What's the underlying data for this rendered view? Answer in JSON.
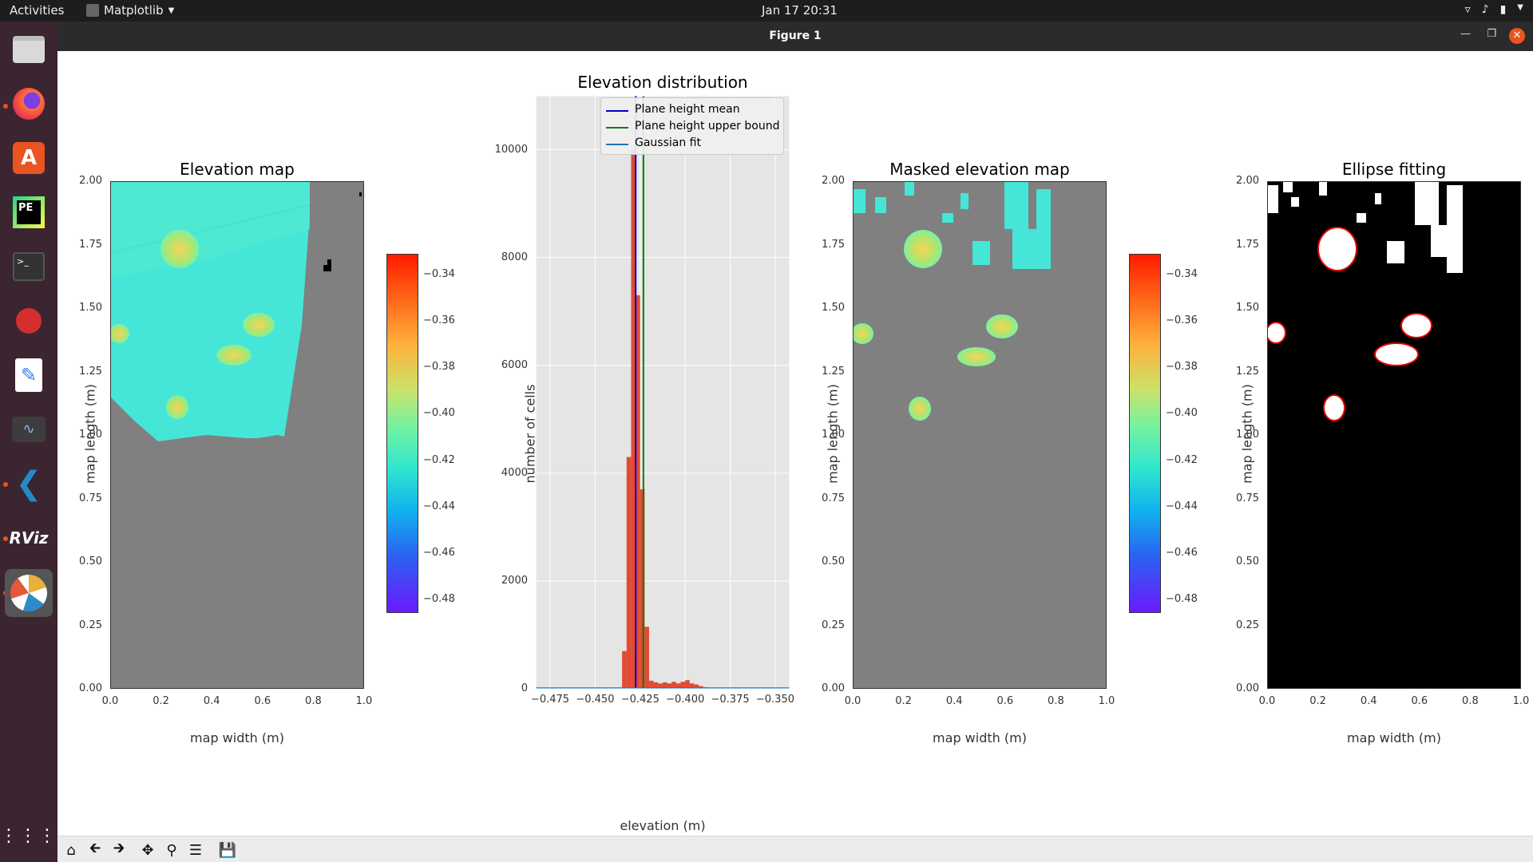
{
  "topbar": {
    "activities": "Activities",
    "app_name": "Matplotlib",
    "clock": "Jan 17  20:31"
  },
  "dock": {
    "items": [
      "files",
      "firefox",
      "ubuntu-software",
      "pycharm-edu",
      "terminal",
      "bug-reporter",
      "text-editor",
      "system-monitor",
      "vscode",
      "rviz",
      "rqt"
    ],
    "show_apps": "show-applications"
  },
  "window": {
    "title": "Figure 1"
  },
  "plots": {
    "elevation_map": {
      "title": "Elevation map",
      "xlabel": "map width (m)",
      "ylabel": "map length (m)",
      "xticks": [
        "0.0",
        "0.2",
        "0.4",
        "0.6",
        "0.8",
        "1.0"
      ],
      "yticks": [
        "0.00",
        "0.25",
        "0.50",
        "0.75",
        "1.00",
        "1.25",
        "1.50",
        "1.75",
        "2.00"
      ]
    },
    "histogram": {
      "title": "Elevation distribution",
      "xlabel": "elevation (m)",
      "ylabel": "number of cells",
      "xticks": [
        "−0.475",
        "−0.450",
        "−0.425",
        "−0.400",
        "−0.375",
        "−0.350"
      ],
      "yticks": [
        "0",
        "2000",
        "4000",
        "6000",
        "8000",
        "10000"
      ],
      "legend": [
        "Plane height mean",
        "Plane height upper bound",
        "Gaussian fit"
      ]
    },
    "masked_map": {
      "title": "Masked elevation map",
      "xlabel": "map width (m)",
      "ylabel": "map length (m)",
      "xticks": [
        "0.0",
        "0.2",
        "0.4",
        "0.6",
        "0.8",
        "1.0"
      ],
      "yticks": [
        "0.00",
        "0.25",
        "0.50",
        "0.75",
        "1.00",
        "1.25",
        "1.50",
        "1.75",
        "2.00"
      ]
    },
    "ellipse_fitting": {
      "title": "Ellipse fitting",
      "xlabel": "map width (m)",
      "ylabel": "map length (m)",
      "xticks": [
        "0.0",
        "0.2",
        "0.4",
        "0.6",
        "0.8",
        "1.0"
      ],
      "yticks": [
        "0.00",
        "0.25",
        "0.50",
        "0.75",
        "1.00",
        "1.25",
        "1.50",
        "1.75",
        "2.00"
      ]
    },
    "colorbar": {
      "ticks": [
        "−0.34",
        "−0.36",
        "−0.38",
        "−0.40",
        "−0.42",
        "−0.44",
        "−0.46",
        "−0.48"
      ]
    }
  },
  "chart_data": [
    {
      "type": "heatmap",
      "title": "Elevation map",
      "xlabel": "map width (m)",
      "ylabel": "map length (m)",
      "xlim": [
        0.0,
        1.0
      ],
      "ylim": [
        0.0,
        2.0
      ],
      "colormap": "rainbow",
      "clim": [
        -0.48,
        -0.33
      ],
      "blobs": [
        {
          "x": 0.27,
          "y": 1.76,
          "value": -0.38
        },
        {
          "x": 0.04,
          "y": 1.4,
          "value": -0.39
        },
        {
          "x": 0.58,
          "y": 1.44,
          "value": -0.38
        },
        {
          "x": 0.49,
          "y": 1.32,
          "value": -0.39
        },
        {
          "x": 0.26,
          "y": 1.1,
          "value": -0.4
        }
      ]
    },
    {
      "type": "bar",
      "title": "Elevation distribution",
      "xlabel": "elevation (m)",
      "ylabel": "number of cells",
      "xlim": [
        -0.483,
        -0.342
      ],
      "ylim": [
        0,
        11000
      ],
      "bin_width": 0.0025,
      "x": [
        -0.4338,
        -0.4313,
        -0.4288,
        -0.4263,
        -0.4238,
        -0.4213,
        -0.4188,
        -0.4163,
        -0.4138,
        -0.4113,
        -0.4088,
        -0.4063,
        -0.4038,
        -0.4013,
        -0.3988,
        -0.3963,
        -0.3938,
        -0.3913,
        -0.3888,
        -0.3863
      ],
      "values": [
        700,
        4300,
        10000,
        7300,
        3700,
        1150,
        150,
        120,
        100,
        120,
        100,
        130,
        100,
        130,
        160,
        100,
        80,
        50,
        30,
        20
      ],
      "lines": [
        {
          "name": "Plane height mean",
          "x": -0.4275,
          "color": "#0000cc"
        },
        {
          "name": "Plane height upper bound",
          "x": -0.4232,
          "color": "#008000"
        }
      ],
      "series": [
        {
          "name": "Gaussian fit",
          "color": "#1f77b4"
        }
      ]
    },
    {
      "type": "heatmap",
      "title": "Masked elevation map",
      "xlabel": "map width (m)",
      "ylabel": "map length (m)",
      "xlim": [
        0.0,
        1.0
      ],
      "ylim": [
        0.0,
        2.0
      ],
      "colormap": "rainbow",
      "clim": [
        -0.48,
        -0.33
      ],
      "blobs": [
        {
          "x": 0.28,
          "y": 1.76,
          "value": -0.38
        },
        {
          "x": 0.04,
          "y": 1.4,
          "value": -0.41
        },
        {
          "x": 0.58,
          "y": 1.44,
          "value": -0.38
        },
        {
          "x": 0.49,
          "y": 1.31,
          "value": -0.39
        },
        {
          "x": 0.26,
          "y": 1.1,
          "value": -0.41
        }
      ]
    },
    {
      "type": "heatmap",
      "title": "Ellipse fitting",
      "xlabel": "map width (m)",
      "ylabel": "map length (m)",
      "xlim": [
        0.0,
        1.0
      ],
      "ylim": [
        0.0,
        2.0
      ],
      "colormap": "binary",
      "ellipses": [
        {
          "cx": 0.28,
          "cy": 1.74,
          "rx": 0.075,
          "ry": 0.085
        },
        {
          "cx": 0.04,
          "cy": 1.4,
          "rx": 0.035,
          "ry": 0.04
        },
        {
          "cx": 0.59,
          "cy": 1.44,
          "rx": 0.06,
          "ry": 0.045
        },
        {
          "cx": 0.52,
          "cy": 1.32,
          "rx": 0.085,
          "ry": 0.045
        },
        {
          "cx": 0.26,
          "cy": 1.1,
          "rx": 0.04,
          "ry": 0.05
        }
      ]
    }
  ],
  "toolbar": {
    "buttons": [
      "home-icon",
      "back-icon",
      "forward-icon",
      "pan-icon",
      "zoom-icon",
      "configure-icon",
      "save-icon"
    ]
  }
}
